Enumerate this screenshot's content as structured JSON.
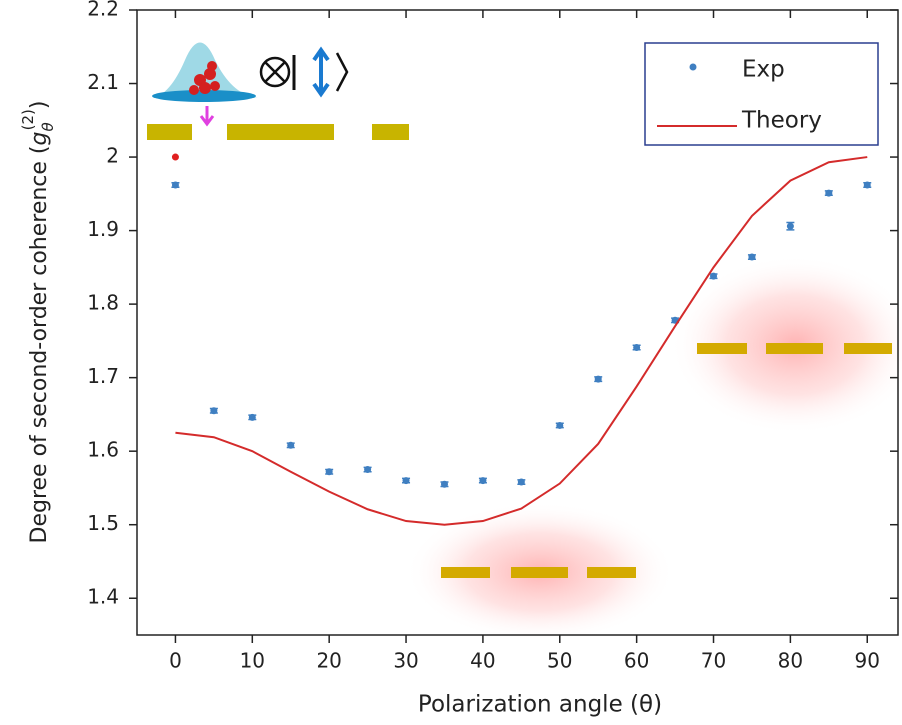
{
  "chart_data": {
    "type": "scatter-line",
    "xlabel": "Polarization angle (θ)",
    "ylabel": {
      "text": "Degree of second-order coherence (",
      "symbol": "g",
      "sub": "θ",
      "sup": "(2)",
      "close": ")"
    },
    "xlim": [
      -5,
      94
    ],
    "ylim": [
      1.35,
      2.2
    ],
    "xticks": [
      0,
      10,
      20,
      30,
      40,
      50,
      60,
      70,
      80,
      90
    ],
    "yticks": [
      1.4,
      1.5,
      1.6,
      1.7,
      1.8,
      1.9,
      2,
      2.1,
      2.2
    ],
    "legend": "upper right",
    "series": [
      {
        "name": "Exp",
        "kind": "points",
        "color": "#3f7fc1",
        "x": [
          0,
          5,
          10,
          15,
          20,
          25,
          30,
          35,
          40,
          45,
          50,
          55,
          60,
          65,
          70,
          75,
          80,
          85,
          90
        ],
        "values": [
          1.962,
          1.655,
          1.646,
          1.608,
          1.572,
          1.575,
          1.56,
          1.555,
          1.56,
          1.558,
          1.635,
          1.698,
          1.741,
          1.778,
          1.838,
          1.864,
          1.906,
          1.951,
          1.962
        ],
        "errors": [
          0.003,
          0.003,
          0.003,
          0.003,
          0.003,
          0.003,
          0.003,
          0.003,
          0.003,
          0.003,
          0.003,
          0.003,
          0.003,
          0.003,
          0.003,
          0.003,
          0.005,
          0.003,
          0.003
        ]
      },
      {
        "name": "Theory",
        "kind": "line",
        "color": "#d42b2b",
        "x": [
          0,
          5,
          10,
          15,
          20,
          25,
          30,
          35,
          40,
          45,
          50,
          55,
          60,
          65,
          70,
          75,
          80,
          85,
          90
        ],
        "values": [
          1.625,
          1.619,
          1.6,
          1.572,
          1.545,
          1.521,
          1.505,
          1.5,
          1.505,
          1.522,
          1.556,
          1.61,
          1.688,
          1.77,
          1.85,
          1.92,
          1.968,
          1.993,
          2.0
        ]
      },
      {
        "kind": "points",
        "color": "#e02020",
        "x": [
          0
        ],
        "values": [
          2.0
        ]
      }
    ]
  }
}
